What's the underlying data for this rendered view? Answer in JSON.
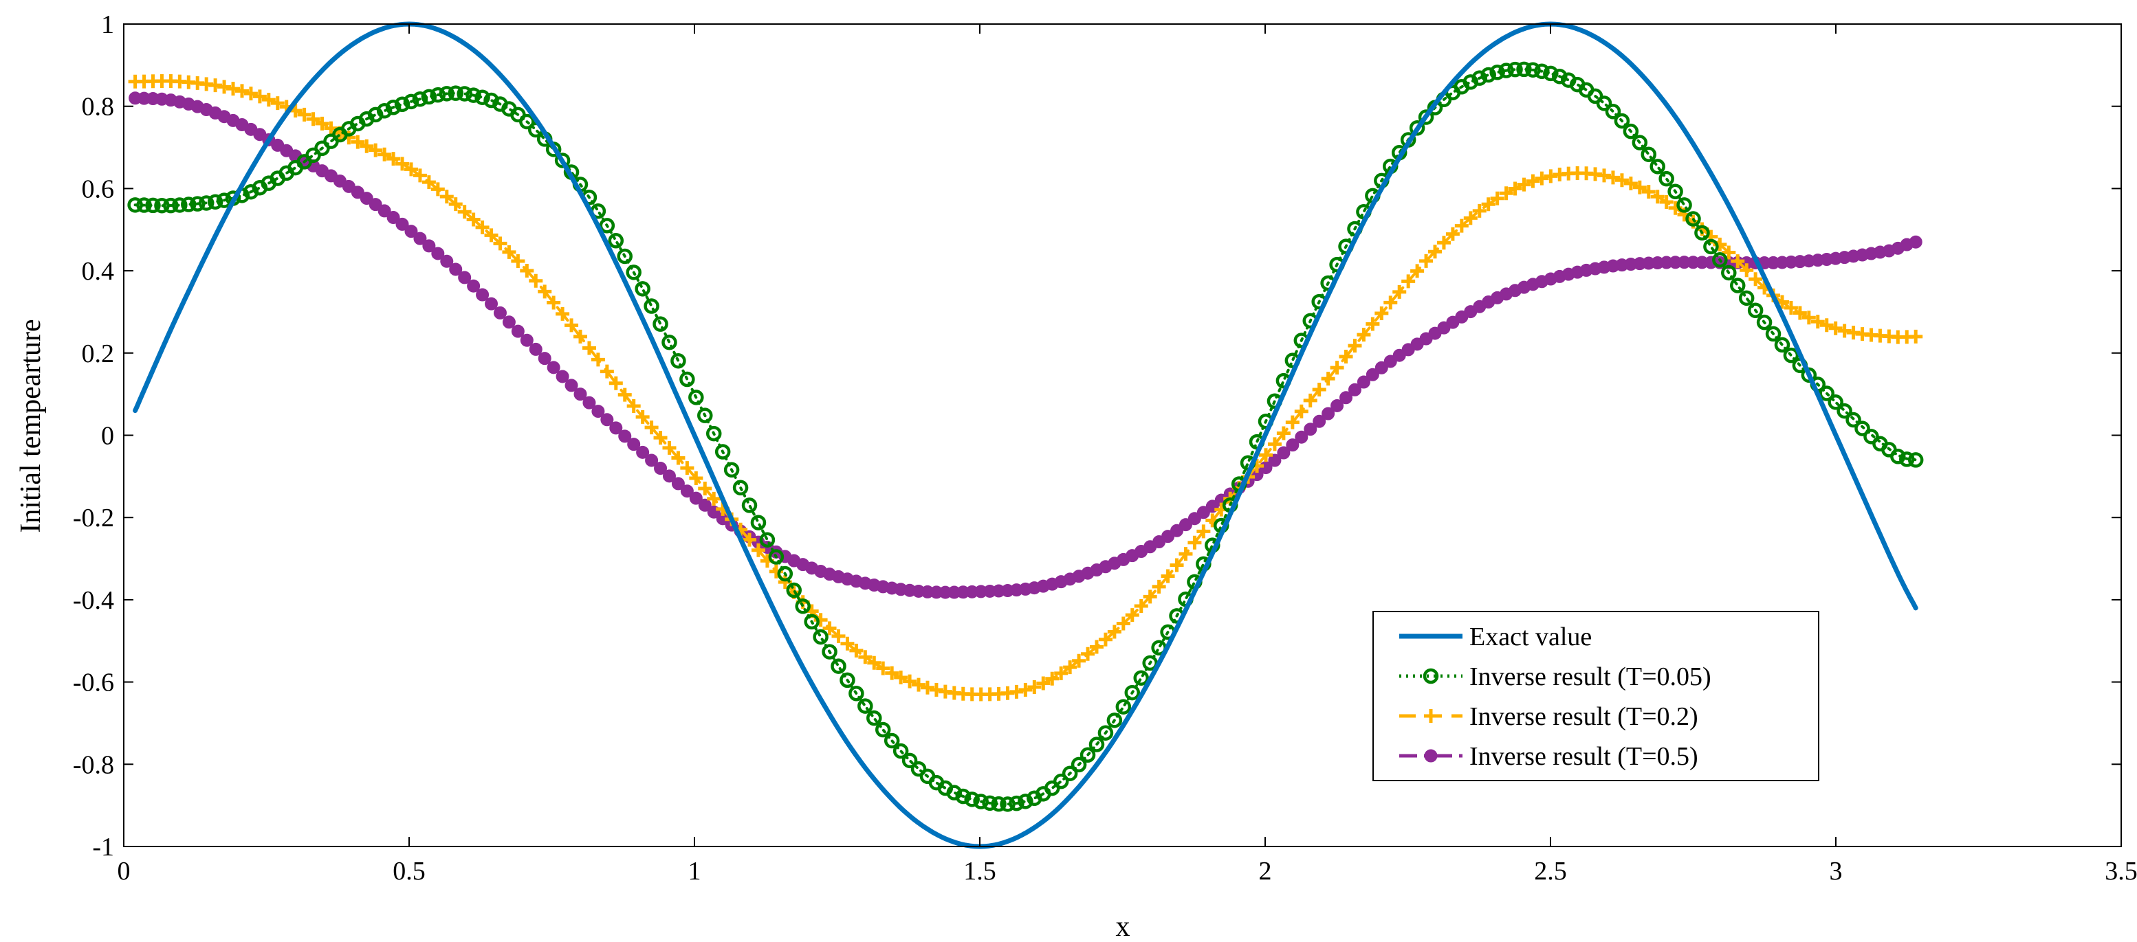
{
  "chart_data": {
    "type": "line",
    "title": "",
    "xlabel": "x",
    "ylabel": "Initial tempearture",
    "xlim": [
      0,
      3.5
    ],
    "ylim": [
      -1,
      1
    ],
    "xticks": [
      "0",
      "0.5",
      "1",
      "1.5",
      "2",
      "2.5",
      "3",
      "3.5"
    ],
    "yticks": [
      "-1",
      "-0.8",
      "-0.6",
      "-0.4",
      "-0.2",
      "0",
      "0.2",
      "0.4",
      "0.6",
      "0.8",
      "1"
    ],
    "legend_position": "bottom-right",
    "x": [
      0.02,
      0.1,
      0.2,
      0.3,
      0.4,
      0.5,
      0.6,
      0.7,
      0.8,
      0.9,
      1.0,
      1.1,
      1.2,
      1.3,
      1.4,
      1.5,
      1.6,
      1.7,
      1.8,
      1.9,
      2.0,
      2.1,
      2.2,
      2.3,
      2.4,
      2.5,
      2.6,
      2.7,
      2.8,
      2.9,
      3.0,
      3.1,
      3.14
    ],
    "series": [
      {
        "name": "Exact value",
        "color": "#0072BD",
        "style": "solid",
        "marker": "none",
        "values": [
          0.06,
          0.31,
          0.59,
          0.81,
          0.95,
          1.0,
          0.95,
          0.81,
          0.59,
          0.31,
          0.0,
          -0.31,
          -0.59,
          -0.81,
          -0.95,
          -1.0,
          -0.95,
          -0.81,
          -0.59,
          -0.31,
          0.0,
          0.31,
          0.59,
          0.81,
          0.95,
          1.0,
          0.95,
          0.81,
          0.59,
          0.31,
          0.0,
          -0.31,
          -0.42
        ]
      },
      {
        "name": "Inverse result (T=0.05)",
        "color": "#008000",
        "style": "dotted",
        "marker": "circle",
        "values": [
          0.56,
          0.56,
          0.58,
          0.65,
          0.75,
          0.81,
          0.83,
          0.77,
          0.61,
          0.38,
          0.1,
          -0.18,
          -0.44,
          -0.66,
          -0.82,
          -0.89,
          -0.88,
          -0.76,
          -0.55,
          -0.29,
          0.03,
          0.34,
          0.61,
          0.8,
          0.88,
          0.88,
          0.8,
          0.63,
          0.42,
          0.23,
          0.08,
          -0.04,
          -0.06
        ]
      },
      {
        "name": "Inverse result  (T=0.2)",
        "color": "#FFB000",
        "style": "dashed",
        "marker": "plus",
        "values": [
          0.86,
          0.86,
          0.84,
          0.79,
          0.72,
          0.65,
          0.54,
          0.41,
          0.24,
          0.06,
          -0.1,
          -0.26,
          -0.42,
          -0.54,
          -0.61,
          -0.63,
          -0.61,
          -0.52,
          -0.39,
          -0.22,
          -0.05,
          0.12,
          0.29,
          0.45,
          0.57,
          0.63,
          0.63,
          0.57,
          0.46,
          0.33,
          0.26,
          0.24,
          0.24
        ]
      },
      {
        "name": "Inverse result  (T=0.5)",
        "color": "#8E2A96",
        "style": "dashdot",
        "marker": "dot",
        "values": [
          0.82,
          0.81,
          0.76,
          0.68,
          0.6,
          0.5,
          0.38,
          0.24,
          0.1,
          -0.03,
          -0.15,
          -0.25,
          -0.32,
          -0.36,
          -0.38,
          -0.38,
          -0.37,
          -0.33,
          -0.27,
          -0.18,
          -0.08,
          0.04,
          0.16,
          0.25,
          0.33,
          0.38,
          0.41,
          0.42,
          0.42,
          0.42,
          0.43,
          0.45,
          0.47
        ]
      }
    ]
  }
}
